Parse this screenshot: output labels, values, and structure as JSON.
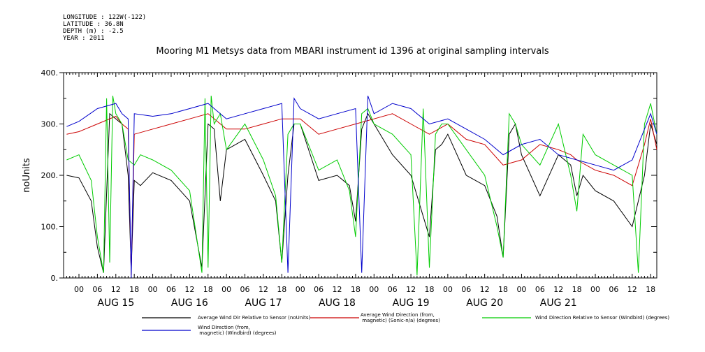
{
  "header": {
    "meta_lines": [
      "LONGITUDE : 122W(-122)",
      "LATITUDE : 36.8N",
      "DEPTH (m) : -2.5",
      "YEAR : 2011"
    ]
  },
  "chart_data": {
    "type": "line",
    "title": "Mooring M1 Metsys data from MBARI instrument id 1396 at original sampling intervals",
    "ylabel": "noUnits",
    "ylim": [
      0,
      400
    ],
    "yticks": [
      0,
      100,
      200,
      300,
      400
    ],
    "ytick_labels": [
      "0.",
      "100.",
      "200.",
      "300.",
      "400."
    ],
    "xlim_hours": [
      -5,
      188
    ],
    "x_units": "hours since AUG 15 00:00 (2011)",
    "hour_tick_labels": [
      "00",
      "06",
      "12",
      "18"
    ],
    "day_labels": [
      "AUG 15",
      "AUG 16",
      "AUG 17",
      "AUG 18",
      "AUG 19",
      "AUG 20",
      "AUG 21"
    ],
    "series": [
      {
        "name": "Average Wind Dir Relative to Sensor (noUnits)",
        "color": "#000000",
        "x": [
          -4,
          0,
          4,
          6,
          8,
          10,
          12,
          14,
          16,
          17,
          18,
          20,
          24,
          30,
          36,
          40,
          42,
          44,
          46,
          48,
          54,
          60,
          64,
          66,
          68,
          70,
          72,
          78,
          84,
          88,
          90,
          92,
          94,
          96,
          102,
          108,
          112,
          114,
          116,
          118,
          120,
          126,
          132,
          136,
          138,
          140,
          142,
          144,
          150,
          156,
          160,
          162,
          164,
          168,
          174,
          180,
          184,
          186,
          188
        ],
        "y": [
          200,
          195,
          150,
          60,
          10,
          320,
          310,
          300,
          200,
          15,
          190,
          180,
          205,
          190,
          150,
          20,
          300,
          290,
          150,
          250,
          270,
          200,
          150,
          30,
          200,
          300,
          300,
          190,
          200,
          180,
          110,
          290,
          320,
          300,
          240,
          200,
          120,
          80,
          250,
          260,
          280,
          200,
          180,
          120,
          40,
          280,
          300,
          240,
          160,
          240,
          220,
          160,
          200,
          170,
          150,
          100,
          200,
          300,
          260
        ]
      },
      {
        "name": "Average Wind Direction (from, magnetic) (Sonic-n/a) (degrees)",
        "color": "#cc0000",
        "x": [
          -4,
          0,
          6,
          12,
          14,
          16,
          17,
          18,
          24,
          30,
          36,
          42,
          48,
          54,
          60,
          66,
          72,
          78,
          84,
          90,
          96,
          102,
          108,
          114,
          120,
          126,
          132,
          138,
          144,
          150,
          156,
          160,
          162,
          168,
          174,
          180,
          184,
          186,
          188
        ],
        "y": [
          280,
          285,
          300,
          315,
          300,
          290,
          5,
          280,
          290,
          300,
          310,
          320,
          290,
          290,
          300,
          310,
          310,
          280,
          290,
          300,
          310,
          320,
          300,
          280,
          300,
          270,
          260,
          220,
          230,
          260,
          250,
          240,
          230,
          210,
          200,
          180,
          260,
          310,
          250
        ]
      },
      {
        "name": "Wind Direction Relative to Sensor (Windbird) (degrees)",
        "color": "#00cc00",
        "x": [
          -4,
          0,
          4,
          6,
          8,
          9,
          10,
          11,
          12,
          14,
          16,
          18,
          20,
          24,
          30,
          36,
          40,
          41,
          42,
          43,
          44,
          46,
          48,
          54,
          60,
          64,
          66,
          68,
          70,
          72,
          78,
          84,
          88,
          90,
          92,
          94,
          96,
          102,
          108,
          110,
          112,
          114,
          116,
          118,
          120,
          126,
          132,
          136,
          138,
          140,
          142,
          144,
          150,
          156,
          160,
          162,
          164,
          168,
          174,
          180,
          182,
          184,
          186,
          188
        ],
        "y": [
          230,
          240,
          190,
          80,
          10,
          350,
          30,
          355,
          320,
          300,
          230,
          220,
          240,
          230,
          210,
          170,
          10,
          350,
          20,
          355,
          300,
          320,
          250,
          300,
          230,
          160,
          30,
          280,
          300,
          300,
          210,
          230,
          170,
          80,
          320,
          330,
          300,
          280,
          240,
          5,
          330,
          20,
          280,
          300,
          300,
          250,
          200,
          100,
          40,
          320,
          300,
          260,
          220,
          300,
          200,
          130,
          280,
          240,
          220,
          200,
          10,
          300,
          340,
          280
        ]
      },
      {
        "name": "Wind Direction (from, magnetic) (Windbird) (degrees)",
        "color": "#0000cc",
        "x": [
          -4,
          0,
          6,
          12,
          14,
          16,
          17,
          18,
          24,
          30,
          36,
          42,
          48,
          54,
          60,
          66,
          68,
          70,
          72,
          78,
          84,
          90,
          92,
          94,
          96,
          102,
          108,
          114,
          120,
          126,
          132,
          138,
          144,
          150,
          156,
          162,
          168,
          174,
          180,
          186,
          188
        ],
        "y": [
          295,
          305,
          330,
          340,
          320,
          310,
          0,
          320,
          315,
          320,
          330,
          340,
          310,
          320,
          330,
          340,
          10,
          350,
          330,
          310,
          320,
          330,
          10,
          355,
          320,
          340,
          330,
          300,
          310,
          290,
          270,
          240,
          260,
          270,
          240,
          230,
          220,
          210,
          230,
          320,
          280
        ]
      }
    ],
    "legend": {
      "placement": "bottom",
      "entries": [
        {
          "label": "Average Wind Dir Relative to Sensor (noUnits)",
          "color": "#000000"
        },
        {
          "label": "Average Wind Direction (from,\n magnetic) (Sonic-n/a) (degrees)",
          "color": "#cc0000"
        },
        {
          "label": "Wind Direction Relative to Sensor (Windbird) (degrees)",
          "color": "#00cc00"
        },
        {
          "label": "Wind Direction (from,\n magnetic) (Windbird) (degrees)",
          "color": "#0000cc"
        }
      ]
    }
  }
}
